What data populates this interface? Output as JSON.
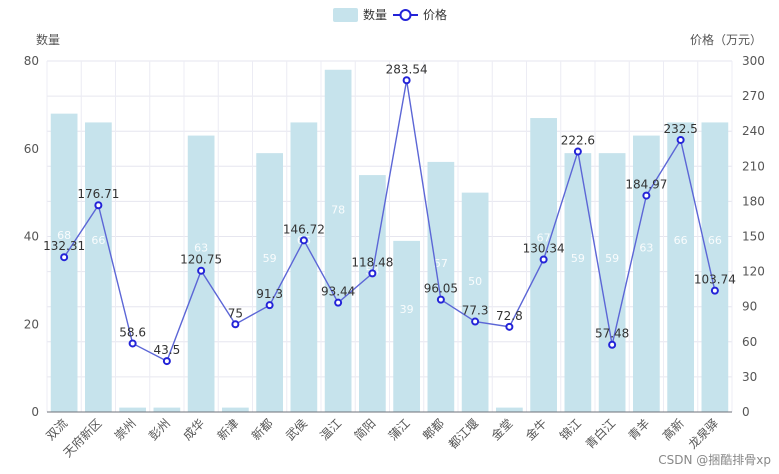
{
  "chart_data": {
    "type": "bar+line",
    "legend": [
      {
        "name": "数量",
        "kind": "bar",
        "color": "#c6e3ec"
      },
      {
        "name": "价格",
        "kind": "line",
        "color": "#3b3bd4"
      }
    ],
    "left_axis_title": "数量",
    "right_axis_title": "价格（万元）",
    "left_ylim": [
      0,
      80
    ],
    "left_ticks": [
      0,
      20,
      40,
      60,
      80
    ],
    "right_ylim": [
      0,
      300
    ],
    "right_ticks": [
      0,
      30,
      60,
      90,
      120,
      150,
      180,
      210,
      240,
      270,
      300
    ],
    "categories": [
      "双流",
      "天府新区",
      "崇州",
      "彭州",
      "成华",
      "新津",
      "新都",
      "武侯",
      "温江",
      "简阳",
      "蒲江",
      "郫都",
      "都江堰",
      "金堂",
      "金牛",
      "锦江",
      "青白江",
      "青羊",
      "高新",
      "龙泉驿"
    ],
    "series": [
      {
        "name": "数量",
        "type": "bar",
        "values": [
          68,
          66,
          1,
          1,
          63,
          1,
          59,
          66,
          78,
          54,
          39,
          57,
          50,
          1,
          67,
          59,
          59,
          63,
          66,
          66
        ]
      },
      {
        "name": "价格",
        "type": "line",
        "values": [
          132.31,
          176.71,
          58.6,
          43.5,
          120.75,
          75,
          91.3,
          146.72,
          93.44,
          118.48,
          283.54,
          96.05,
          77.3,
          72.8,
          130.34,
          222.6,
          57.48,
          184.97,
          232.5,
          103.74
        ]
      }
    ],
    "bar_labels": [
      "68",
      "66",
      "1",
      "1",
      "63",
      "1",
      "59",
      "66",
      "78",
      "54",
      "39",
      "57",
      "50",
      "1",
      "67",
      "59",
      "59",
      "63",
      "66",
      "66"
    ],
    "line_labels": [
      "132.31",
      "176.71",
      "58.6",
      "43.5",
      "120.75",
      "75",
      "91.3",
      "146.72",
      "93.44",
      "118.48",
      "283.54",
      "96.05",
      "77.3",
      "72.8",
      "130.34",
      "222.6",
      "57.48",
      "184.97",
      "232.5",
      "103.74"
    ],
    "grid": true
  },
  "watermark": "CSDN @捆酷排骨xp"
}
